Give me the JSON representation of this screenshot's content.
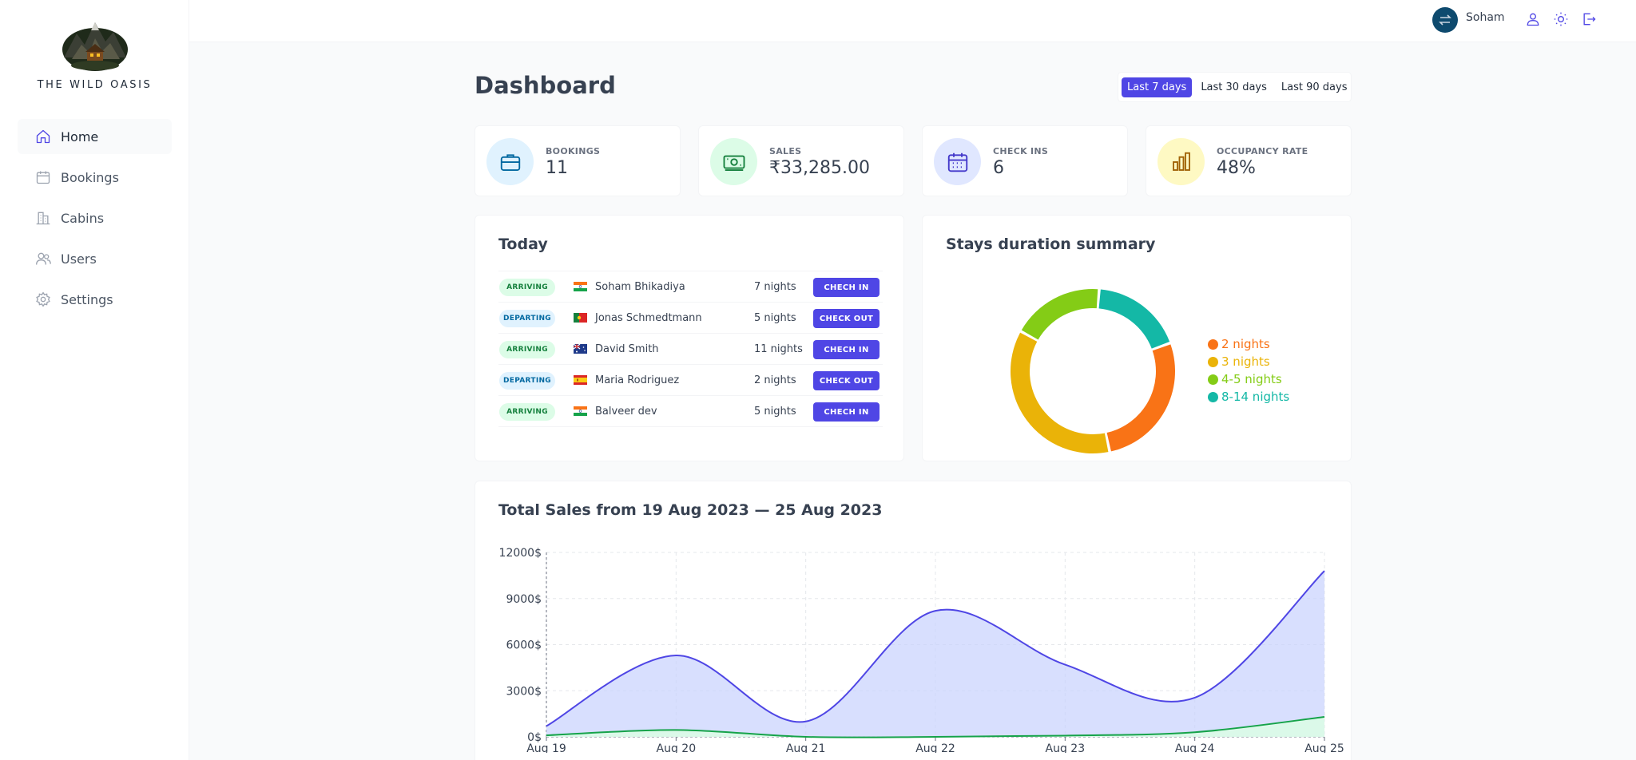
{
  "brand": {
    "name": "THE WILD OASIS"
  },
  "sidebar": {
    "items": [
      {
        "label": "Home",
        "icon": "home-icon",
        "active": true
      },
      {
        "label": "Bookings",
        "icon": "calendar-icon",
        "active": false
      },
      {
        "label": "Cabins",
        "icon": "building-icon",
        "active": false
      },
      {
        "label": "Users",
        "icon": "users-icon",
        "active": false
      },
      {
        "label": "Settings",
        "icon": "gear-icon",
        "active": false
      }
    ]
  },
  "header": {
    "username": "Soham"
  },
  "page": {
    "title": "Dashboard"
  },
  "filter": {
    "options": [
      "Last 7 days",
      "Last 30 days",
      "Last 90 days"
    ],
    "selected": "Last 7 days"
  },
  "stats": [
    {
      "label": "BOOKINGS",
      "value": "11",
      "icon": "briefcase-icon",
      "bg": "#e0f2fe",
      "fg": "#0369a1"
    },
    {
      "label": "SALES",
      "value": "₹33,285.00",
      "icon": "banknotes-icon",
      "bg": "#dcfce7",
      "fg": "#15803d"
    },
    {
      "label": "CHECK INS",
      "value": "6",
      "icon": "calendar-days-icon",
      "bg": "#e0e7ff",
      "fg": "#4338ca"
    },
    {
      "label": "OCCUPANCY RATE",
      "value": "48%",
      "icon": "chart-bar-icon",
      "bg": "#fef9c3",
      "fg": "#a16207"
    }
  ],
  "today": {
    "title": "Today",
    "rows": [
      {
        "status": "ARRIVING",
        "flag": "india",
        "guest": "Soham Bhikadiya",
        "nights": "7 nights",
        "action": "CHECH IN"
      },
      {
        "status": "DEPARTING",
        "flag": "portugal",
        "guest": "Jonas Schmedtmann",
        "nights": "5 nights",
        "action": "CHECK OUT"
      },
      {
        "status": "ARRIVING",
        "flag": "australia",
        "guest": "David Smith",
        "nights": "11 nights",
        "action": "CHECH IN"
      },
      {
        "status": "DEPARTING",
        "flag": "spain",
        "guest": "Maria Rodriguez",
        "nights": "2 nights",
        "action": "CHECK OUT"
      },
      {
        "status": "ARRIVING",
        "flag": "india",
        "guest": "Balveer dev",
        "nights": "5 nights",
        "action": "CHECH IN"
      }
    ]
  },
  "chart_data": [
    {
      "type": "pie",
      "title": "Stays duration summary",
      "legend_position": "right",
      "slices": [
        {
          "label": "2 nights",
          "value": 27,
          "color": "#f97316"
        },
        {
          "label": "3 nights",
          "value": 36,
          "color": "#eab308"
        },
        {
          "label": "4-5 nights",
          "value": 18,
          "color": "#84cc16"
        },
        {
          "label": "8-14 nights",
          "value": 18,
          "color": "#14b8a6"
        }
      ]
    },
    {
      "type": "area",
      "title": "Total Sales from 19 Aug 2023 — 25 Aug 2023",
      "categories": [
        "Aug 19",
        "Aug 20",
        "Aug 21",
        "Aug 22",
        "Aug 23",
        "Aug 24",
        "Aug 25"
      ],
      "yticks": [
        "0$",
        "3000$",
        "6000$",
        "9000$",
        "12000$"
      ],
      "ylim": [
        0,
        12000
      ],
      "grid": true,
      "series": [
        {
          "values": [
            700,
            5300,
            1000,
            8200,
            4700,
            2550,
            10800
          ],
          "color": "#4f46e5",
          "fill": "#c7d2fe"
        },
        {
          "values": [
            100,
            450,
            0,
            0,
            80,
            300,
            1300
          ],
          "color": "#16a34a",
          "fill": "#dcfce7"
        }
      ]
    }
  ]
}
